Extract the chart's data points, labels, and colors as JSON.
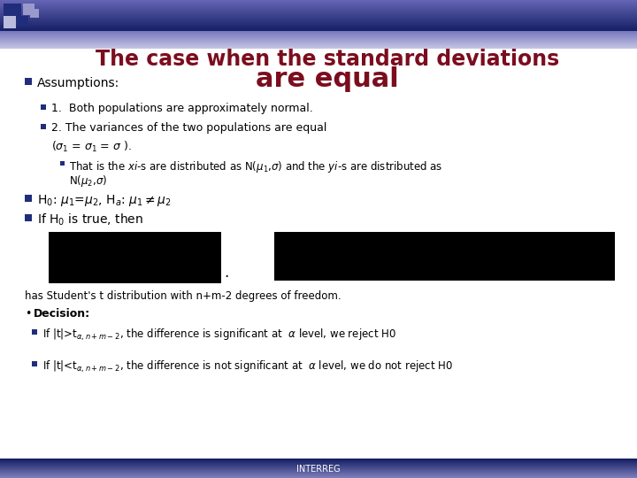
{
  "title_line1": "The case when the standard deviations",
  "title_line2": "are equal",
  "title_color": "#7B0D1E",
  "bg_color": "#FFFFFF",
  "bullet_color": "#1F2D7B",
  "text_color": "#000000",
  "footer_text": "INTERREG",
  "footer_text_color": "#FFFFFF",
  "header_sq": [
    [
      4,
      4,
      20,
      20,
      "#1F2D7B"
    ],
    [
      26,
      4,
      13,
      13,
      "#9999CC"
    ],
    [
      4,
      18,
      14,
      14,
      "#BBBBDD"
    ],
    [
      20,
      18,
      12,
      12,
      "#1F2D7B"
    ],
    [
      34,
      10,
      10,
      10,
      "#9999CC"
    ]
  ]
}
